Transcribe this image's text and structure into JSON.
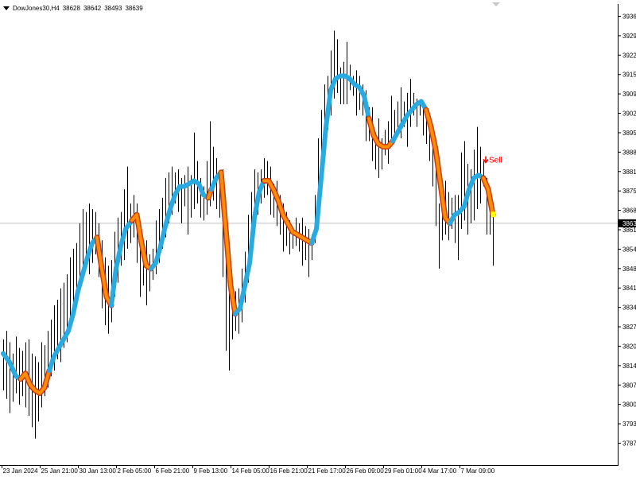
{
  "info": {
    "symbol_timeframe": "DowJones30,H4",
    "open": "38628",
    "high": "38642",
    "low": "38493",
    "close": "38639"
  },
  "colors": {
    "background": "#ffffff",
    "candle": "#000000",
    "line_up": "#29abe2",
    "line_down": "#ff8c00",
    "line_down_border": "#c83c14",
    "current_price_line": "#c0c0c0",
    "price_label_bg": "#000000",
    "sell_signal": "#ff0000",
    "marker": "#ffff00"
  },
  "chart_data": {
    "type": "line",
    "price_axis_labels": [
      "3936",
      "3929",
      "3922",
      "3915",
      "3909",
      "3902",
      "3895",
      "3888",
      "3881",
      "3875",
      "3868",
      "3861",
      "3854",
      "3848",
      "3841",
      "3834",
      "3827",
      "3820",
      "3814",
      "3807",
      "3800",
      "3793",
      "3787"
    ],
    "current_price_label": "3863",
    "ylim": [
      3786.5,
      3937.2
    ],
    "time_axis_labels": [
      "23 Jan 2024",
      "25 Jan 21:00",
      "30 Jan 13:00",
      "2 Feb 05:00",
      "6 Feb 21:00",
      "9 Feb 13:00",
      "14 Feb 05:00",
      "16 Feb 21:00",
      "21 Feb 17:00",
      "26 Feb 09:00",
      "29 Feb 01:00",
      "4 Mar 17:00",
      "7 Mar 09:00"
    ],
    "current_price": 3864,
    "signal": {
      "label": "Sell",
      "price": 3886,
      "bar": 597
    },
    "trend_line": [
      [
        4,
        3818
      ],
      [
        12,
        3815
      ],
      [
        20,
        3810
      ],
      [
        26,
        3809
      ],
      [
        32,
        3811
      ],
      [
        38,
        3807
      ],
      [
        44,
        3805
      ],
      [
        50,
        3804
      ],
      [
        56,
        3806
      ],
      [
        62,
        3812
      ],
      [
        68,
        3817
      ],
      [
        74,
        3820
      ],
      [
        80,
        3823
      ],
      [
        86,
        3826
      ],
      [
        92,
        3832
      ],
      [
        98,
        3840
      ],
      [
        104,
        3846
      ],
      [
        110,
        3852
      ],
      [
        116,
        3857
      ],
      [
        122,
        3859
      ],
      [
        128,
        3848
      ],
      [
        134,
        3838
      ],
      [
        140,
        3835
      ],
      [
        146,
        3848
      ],
      [
        152,
        3856
      ],
      [
        158,
        3862
      ],
      [
        166,
        3865
      ],
      [
        172,
        3867
      ],
      [
        178,
        3857
      ],
      [
        184,
        3849
      ],
      [
        190,
        3848
      ],
      [
        196,
        3850
      ],
      [
        202,
        3856
      ],
      [
        208,
        3863
      ],
      [
        214,
        3869
      ],
      [
        220,
        3874
      ],
      [
        226,
        3877
      ],
      [
        232,
        3877
      ],
      [
        238,
        3878
      ],
      [
        244,
        3879
      ],
      [
        250,
        3878
      ],
      [
        256,
        3874
      ],
      [
        262,
        3873
      ],
      [
        266,
        3876
      ],
      [
        272,
        3880
      ],
      [
        278,
        3882
      ],
      [
        284,
        3862
      ],
      [
        290,
        3842
      ],
      [
        296,
        3832
      ],
      [
        302,
        3834
      ],
      [
        308,
        3842
      ],
      [
        314,
        3850
      ],
      [
        320,
        3866
      ],
      [
        326,
        3875
      ],
      [
        332,
        3879
      ],
      [
        338,
        3879
      ],
      [
        344,
        3876
      ],
      [
        350,
        3872
      ],
      [
        356,
        3867
      ],
      [
        362,
        3864
      ],
      [
        368,
        3861
      ],
      [
        374,
        3860
      ],
      [
        380,
        3859
      ],
      [
        386,
        3858
      ],
      [
        392,
        3857
      ],
      [
        398,
        3862
      ],
      [
        404,
        3880
      ],
      [
        410,
        3898
      ],
      [
        416,
        3911
      ],
      [
        422,
        3915
      ],
      [
        428,
        3916
      ],
      [
        434,
        3916
      ],
      [
        440,
        3915
      ],
      [
        446,
        3913
      ],
      [
        452,
        3912
      ],
      [
        458,
        3909
      ],
      [
        464,
        3901
      ],
      [
        470,
        3895
      ],
      [
        476,
        3892
      ],
      [
        482,
        3891
      ],
      [
        488,
        3891
      ],
      [
        494,
        3893
      ],
      [
        500,
        3896
      ],
      [
        506,
        3899
      ],
      [
        512,
        3902
      ],
      [
        518,
        3904
      ],
      [
        524,
        3906
      ],
      [
        530,
        3907
      ],
      [
        536,
        3904
      ],
      [
        542,
        3898
      ],
      [
        548,
        3890
      ],
      [
        554,
        3878
      ],
      [
        560,
        3866
      ],
      [
        566,
        3864
      ],
      [
        572,
        3867
      ],
      [
        578,
        3868
      ],
      [
        584,
        3870
      ],
      [
        590,
        3876
      ],
      [
        596,
        3880
      ],
      [
        602,
        3881
      ],
      [
        608,
        3880
      ],
      [
        614,
        3876
      ],
      [
        620,
        3867
      ]
    ],
    "trend_segments": [
      {
        "dir": "up",
        "from": 0,
        "to": 3
      },
      {
        "dir": "down",
        "from": 3,
        "to": 9
      },
      {
        "dir": "up",
        "from": 9,
        "to": 19
      },
      {
        "dir": "down",
        "from": 19,
        "to": 22
      },
      {
        "dir": "up",
        "from": 22,
        "to": 26
      },
      {
        "dir": "down",
        "from": 26,
        "to": 30
      },
      {
        "dir": "up",
        "from": 30,
        "to": 42
      },
      {
        "dir": "down",
        "from": 42,
        "to": 43
      },
      {
        "dir": "up",
        "from": 43,
        "to": 45
      },
      {
        "dir": "down",
        "from": 45,
        "to": 48
      },
      {
        "dir": "up",
        "from": 48,
        "to": 54
      },
      {
        "dir": "down",
        "from": 54,
        "to": 64
      },
      {
        "dir": "up",
        "from": 64,
        "to": 76
      },
      {
        "dir": "down",
        "from": 76,
        "to": 81
      },
      {
        "dir": "up",
        "from": 81,
        "to": 88
      },
      {
        "dir": "down",
        "from": 88,
        "to": 93
      },
      {
        "dir": "up",
        "from": 93,
        "to": 100
      },
      {
        "dir": "down",
        "from": 100,
        "to": 103
      }
    ],
    "bars": [
      [
        4,
        3805,
        3823
      ],
      [
        8,
        3802,
        3826
      ],
      [
        12,
        3797,
        3822
      ],
      [
        16,
        3801,
        3818
      ],
      [
        20,
        3804,
        3824
      ],
      [
        24,
        3800,
        3820
      ],
      [
        28,
        3803,
        3819
      ],
      [
        32,
        3799,
        3822
      ],
      [
        36,
        3796,
        3823
      ],
      [
        40,
        3792,
        3818
      ],
      [
        44,
        3788,
        3817
      ],
      [
        48,
        3794,
        3815
      ],
      [
        52,
        3799,
        3822
      ],
      [
        56,
        3803,
        3821
      ],
      [
        60,
        3806,
        3826
      ],
      [
        64,
        3810,
        3830
      ],
      [
        68,
        3812,
        3835
      ],
      [
        72,
        3816,
        3837
      ],
      [
        76,
        3815,
        3841
      ],
      [
        80,
        3820,
        3843
      ],
      [
        84,
        3822,
        3846
      ],
      [
        88,
        3827,
        3852
      ],
      [
        92,
        3832,
        3855
      ],
      [
        96,
        3838,
        3857
      ],
      [
        100,
        3841,
        3864
      ],
      [
        104,
        3848,
        3869
      ],
      [
        108,
        3851,
        3868
      ],
      [
        112,
        3846,
        3871
      ],
      [
        116,
        3850,
        3869
      ],
      [
        120,
        3853,
        3868
      ],
      [
        124,
        3845,
        3864
      ],
      [
        128,
        3834,
        3858
      ],
      [
        132,
        3828,
        3852
      ],
      [
        136,
        3825,
        3849
      ],
      [
        140,
        3829,
        3851
      ],
      [
        144,
        3838,
        3861
      ],
      [
        148,
        3843,
        3866
      ],
      [
        152,
        3849,
        3868
      ],
      [
        156,
        3851,
        3876
      ],
      [
        160,
        3855,
        3884
      ],
      [
        164,
        3857,
        3871
      ],
      [
        168,
        3859,
        3874
      ],
      [
        172,
        3850,
        3871
      ],
      [
        176,
        3838,
        3864
      ],
      [
        180,
        3842,
        3856
      ],
      [
        184,
        3835,
        3858
      ],
      [
        188,
        3840,
        3853
      ],
      [
        192,
        3844,
        3855
      ],
      [
        196,
        3846,
        3865
      ],
      [
        200,
        3850,
        3869
      ],
      [
        204,
        3855,
        3873
      ],
      [
        208,
        3859,
        3880
      ],
      [
        212,
        3864,
        3882
      ],
      [
        216,
        3867,
        3884
      ],
      [
        220,
        3871,
        3882
      ],
      [
        224,
        3868,
        3883
      ],
      [
        228,
        3864,
        3880
      ],
      [
        232,
        3870,
        3881
      ],
      [
        236,
        3860,
        3884
      ],
      [
        240,
        3866,
        3881
      ],
      [
        244,
        3869,
        3896
      ],
      [
        248,
        3871,
        3886
      ],
      [
        252,
        3866,
        3880
      ],
      [
        256,
        3865,
        3877
      ],
      [
        260,
        3867,
        3886
      ],
      [
        264,
        3870,
        3900
      ],
      [
        268,
        3872,
        3891
      ],
      [
        272,
        3869,
        3887
      ],
      [
        276,
        3866,
        3881
      ],
      [
        280,
        3845,
        3883
      ],
      [
        284,
        3819,
        3866
      ],
      [
        288,
        3812,
        3847
      ],
      [
        292,
        3823,
        3842
      ],
      [
        296,
        3826,
        3840
      ],
      [
        300,
        3825,
        3841
      ],
      [
        304,
        3829,
        3848
      ],
      [
        308,
        3836,
        3854
      ],
      [
        312,
        3843,
        3867
      ],
      [
        316,
        3856,
        3875
      ],
      [
        320,
        3864,
        3883
      ],
      [
        324,
        3867,
        3882
      ],
      [
        328,
        3871,
        3883
      ],
      [
        332,
        3873,
        3887
      ],
      [
        336,
        3874,
        3886
      ],
      [
        340,
        3867,
        3884
      ],
      [
        344,
        3866,
        3878
      ],
      [
        348,
        3863,
        3879
      ],
      [
        352,
        3860,
        3874
      ],
      [
        356,
        3854,
        3871
      ],
      [
        360,
        3856,
        3868
      ],
      [
        364,
        3853,
        3865
      ],
      [
        368,
        3855,
        3862
      ],
      [
        372,
        3856,
        3866
      ],
      [
        376,
        3854,
        3864
      ],
      [
        380,
        3849,
        3866
      ],
      [
        384,
        3851,
        3863
      ],
      [
        388,
        3845,
        3862
      ],
      [
        392,
        3851,
        3860
      ],
      [
        396,
        3857,
        3874
      ],
      [
        400,
        3864,
        3894
      ],
      [
        404,
        3880,
        3904
      ],
      [
        408,
        3890,
        3913
      ],
      [
        412,
        3897,
        3916
      ],
      [
        416,
        3902,
        3925
      ],
      [
        420,
        3908,
        3932
      ],
      [
        424,
        3910,
        3929
      ],
      [
        428,
        3906,
        3919
      ],
      [
        432,
        3906,
        3921
      ],
      [
        436,
        3906,
        3928
      ],
      [
        440,
        3911,
        3920
      ],
      [
        444,
        3909,
        3916
      ],
      [
        448,
        3902,
        3918
      ],
      [
        452,
        3904,
        3916
      ],
      [
        456,
        3902,
        3913
      ],
      [
        460,
        3893,
        3911
      ],
      [
        464,
        3893,
        3905
      ],
      [
        468,
        3886,
        3905
      ],
      [
        472,
        3883,
        3896
      ],
      [
        476,
        3880,
        3901
      ],
      [
        480,
        3883,
        3894
      ],
      [
        484,
        3888,
        3897
      ],
      [
        488,
        3885,
        3900
      ],
      [
        492,
        3894,
        3909
      ],
      [
        496,
        3894,
        3904
      ],
      [
        500,
        3895,
        3907
      ],
      [
        504,
        3894,
        3912
      ],
      [
        508,
        3898,
        3907
      ],
      [
        512,
        3891,
        3910
      ],
      [
        516,
        3898,
        3915
      ],
      [
        520,
        3902,
        3910
      ],
      [
        524,
        3898,
        3908
      ],
      [
        528,
        3902,
        3907
      ],
      [
        532,
        3895,
        3907
      ],
      [
        536,
        3892,
        3903
      ],
      [
        540,
        3886,
        3900
      ],
      [
        544,
        3877,
        3897
      ],
      [
        548,
        3863,
        3890
      ],
      [
        552,
        3848,
        3871
      ],
      [
        556,
        3858,
        3872
      ],
      [
        560,
        3860,
        3879
      ],
      [
        564,
        3858,
        3875
      ],
      [
        568,
        3862,
        3873
      ],
      [
        572,
        3857,
        3874
      ],
      [
        576,
        3851,
        3874
      ],
      [
        580,
        3862,
        3889
      ],
      [
        584,
        3865,
        3893
      ],
      [
        588,
        3860,
        3885
      ],
      [
        592,
        3864,
        3883
      ],
      [
        596,
        3865,
        3890
      ],
      [
        600,
        3869,
        3898
      ],
      [
        604,
        3871,
        3891
      ],
      [
        608,
        3877,
        3886
      ],
      [
        612,
        3860,
        3880
      ],
      [
        616,
        3860,
        3875
      ],
      [
        620,
        3849,
        3867
      ]
    ]
  }
}
